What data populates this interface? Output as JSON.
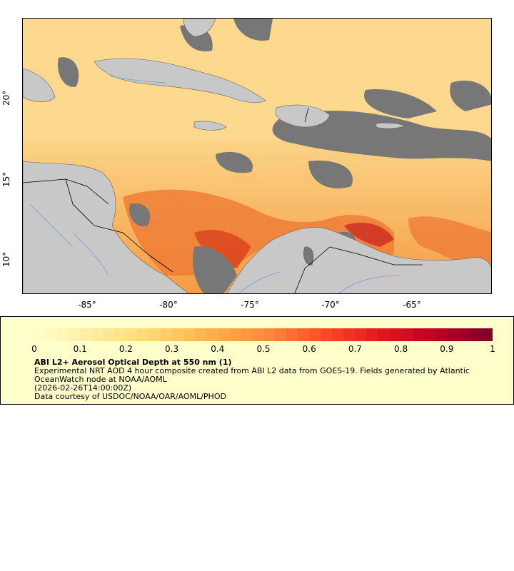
{
  "map": {
    "lon_labels": [
      "-85°",
      "-80°",
      "-75°",
      "-70°",
      "-65°"
    ],
    "lat_labels": [
      "20°",
      "15°",
      "10°"
    ],
    "colors": {
      "land": "#c8c8c8",
      "no_data": "#777777",
      "low_aod": "#fdd98c",
      "mid_aod": "#f59b42",
      "high_aod": "#d9411d",
      "border": "#000000",
      "river": "#6ea0d8"
    }
  },
  "legend": {
    "scale_labels": [
      "0",
      "0.1",
      "0.2",
      "0.3",
      "0.4",
      "0.5",
      "0.6",
      "0.7",
      "0.8",
      "0.9",
      "1"
    ],
    "title": "ABI L2+ Aerosol Optical Depth at 550 nm (1)",
    "description": "Experimental NRT AOD 4 hour composite created from ABI L2 data from GOES-19. Fields generated by Atlantic OceanWatch node at NOAA/AOML",
    "date": "(2026-02-26T14:00:00Z)",
    "credit": "Data courtesy of USDOC/NOAA/OAR/AOML/PHOD"
  }
}
